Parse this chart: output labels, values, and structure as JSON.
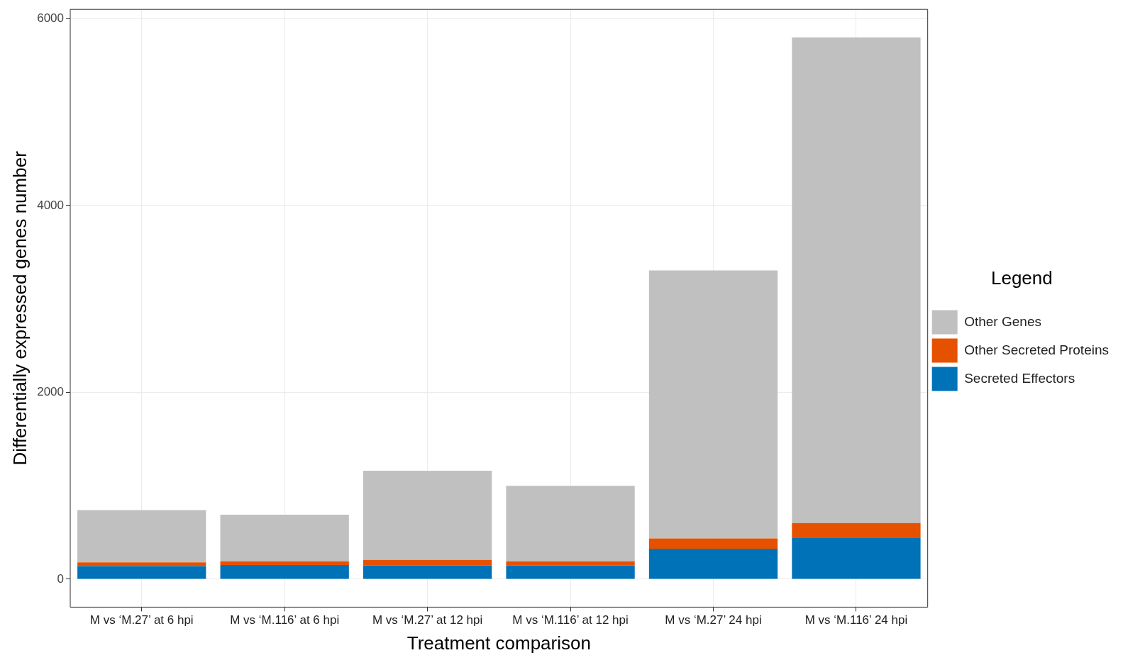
{
  "chart_data": {
    "type": "bar",
    "stacked": true,
    "xlabel": "Treatment comparison",
    "ylabel": "Differentially expressed genes number",
    "legend_title": "Legend",
    "legend": "right",
    "categories": [
      "M vs ‘M.27’ at 6 hpi",
      "M vs ‘M.116’ at 6 hpi",
      "M vs ‘M.27’ at 12 hpi",
      "M vs ‘M.116’ at 12 hpi",
      "M vs ‘M.27’ 24 hpi",
      "M vs ‘M.116’ 24 hpi"
    ],
    "series": [
      {
        "name": "Secreted Effectors",
        "color": "#0072b8",
        "values": [
          140,
          150,
          145,
          145,
          325,
          440
        ]
      },
      {
        "name": "Other Secreted Proteins",
        "color": "#e65100",
        "values": [
          40,
          40,
          60,
          45,
          110,
          160
        ]
      },
      {
        "name": "Other Genes",
        "color": "#c0c0c0",
        "values": [
          560,
          500,
          955,
          810,
          2870,
          5200
        ]
      }
    ],
    "ylim": [
      -300,
      6100
    ],
    "yticks": [
      0,
      2000,
      4000,
      6000
    ],
    "grid": true
  }
}
